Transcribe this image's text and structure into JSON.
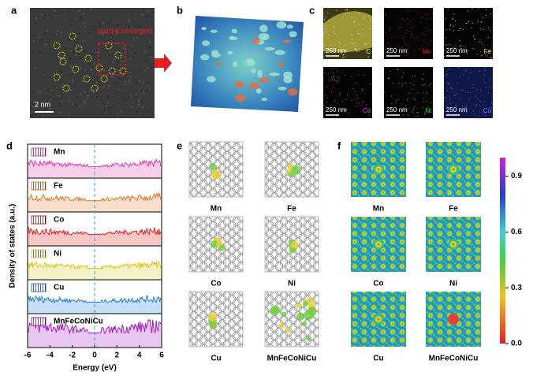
{
  "panels": {
    "a": {
      "label": "a",
      "annotation": "partial enlarged",
      "scale_bar": "2 nm"
    },
    "b": {
      "label": "b"
    },
    "c": {
      "label": "c",
      "maps": [
        {
          "scale_bar": "250 nm",
          "element": "C",
          "color": "#e8e8d0"
        },
        {
          "scale_bar": "250 nm",
          "element": "Mn",
          "color": "#e02020"
        },
        {
          "scale_bar": "250 nm",
          "element": "Fe",
          "color": "#f0e020"
        },
        {
          "scale_bar": "250 nm",
          "element": "Co",
          "color": "#e040d0"
        },
        {
          "scale_bar": "250 nm",
          "element": "Ni",
          "color": "#40d040"
        },
        {
          "scale_bar": "250 nm",
          "element": "Cu",
          "color": "#6080ff"
        }
      ]
    },
    "d": {
      "label": "d",
      "y_label": "Density of states (a.u.)",
      "x_label": "Energy (eV)",
      "xlim": [
        -6,
        6
      ],
      "xticks": [
        -6,
        -4,
        -2,
        0,
        2,
        4,
        6
      ],
      "series": [
        {
          "name": "Mn",
          "color": "#e040b0"
        },
        {
          "name": "Fe",
          "color": "#e07b2a"
        },
        {
          "name": "Co",
          "color": "#e02020"
        },
        {
          "name": "Ni",
          "color": "#d8c820"
        },
        {
          "name": "Cu",
          "color": "#2080d0"
        },
        {
          "name": "MnFeCoNiCu",
          "color": "#a020c0"
        }
      ]
    },
    "e": {
      "label": "e",
      "structures": [
        "Mn",
        "Fe",
        "Co",
        "Ni",
        "Cu",
        "MnFeCoNiCu"
      ]
    },
    "f": {
      "label": "f",
      "maps": [
        "Mn",
        "Fe",
        "Co",
        "Ni",
        "Cu",
        "MnFeCoNiCu"
      ],
      "colorbar": {
        "lim": [
          0,
          1
        ],
        "ticks": [
          {
            "value": 0,
            "label": "0.0"
          },
          {
            "value": 0.3,
            "label": "0.3"
          },
          {
            "value": 0.6,
            "label": "0.6"
          },
          {
            "value": 0.9,
            "label": "0.9"
          }
        ]
      }
    }
  }
}
